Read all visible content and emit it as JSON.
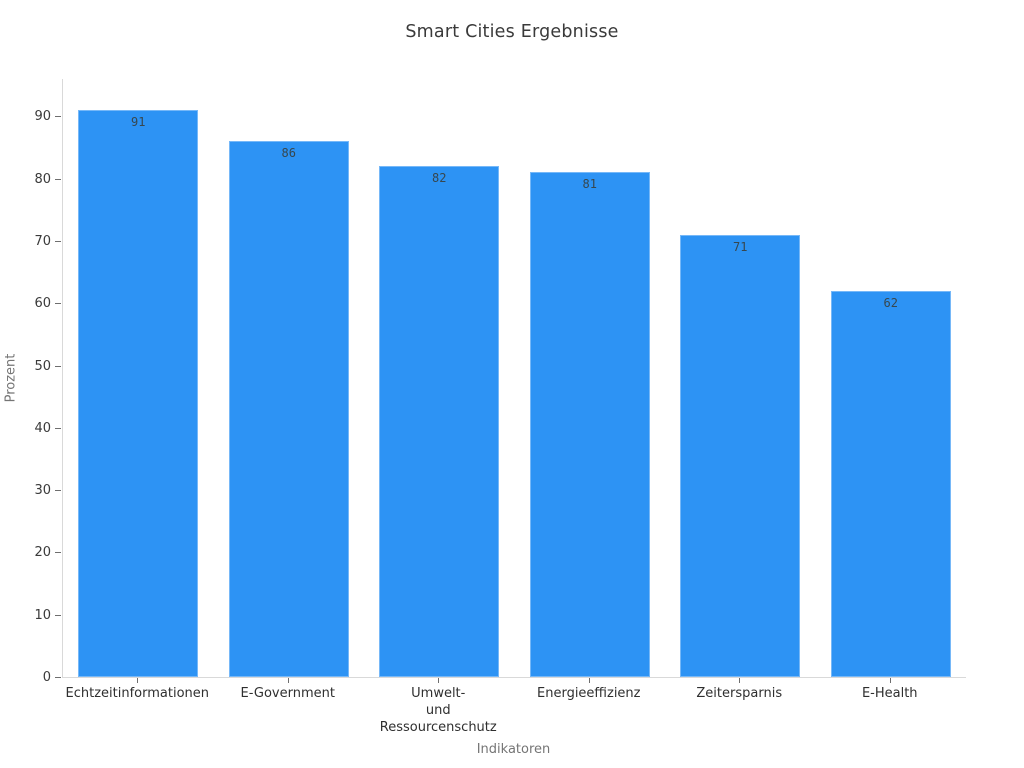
{
  "page": {
    "background": "#ffffff"
  },
  "chart_data": {
    "type": "bar",
    "title": "Smart Cities Ergebnisse",
    "xlabel": "Indikatoren",
    "ylabel": "Prozent",
    "categories": [
      "Echtzeitinformationen",
      "E-Government",
      "Umwelt-\nund\nRessourcenschutz",
      "Energieeffizienz",
      "Zeitersparnis",
      "E-Health"
    ],
    "values": [
      91,
      86,
      82,
      81,
      71,
      62
    ],
    "yticks": [
      0,
      10,
      20,
      30,
      40,
      50,
      60,
      70,
      80,
      90
    ],
    "ylim": [
      0,
      96
    ],
    "grid": false,
    "legend": "none",
    "colors": {
      "bar": "#2d93f4",
      "value_label": "#37474f",
      "tick_label": "#3a3a3a",
      "axis_title": "#757575",
      "spine": "#d9d9d9",
      "title": "#3a3a3a"
    }
  }
}
